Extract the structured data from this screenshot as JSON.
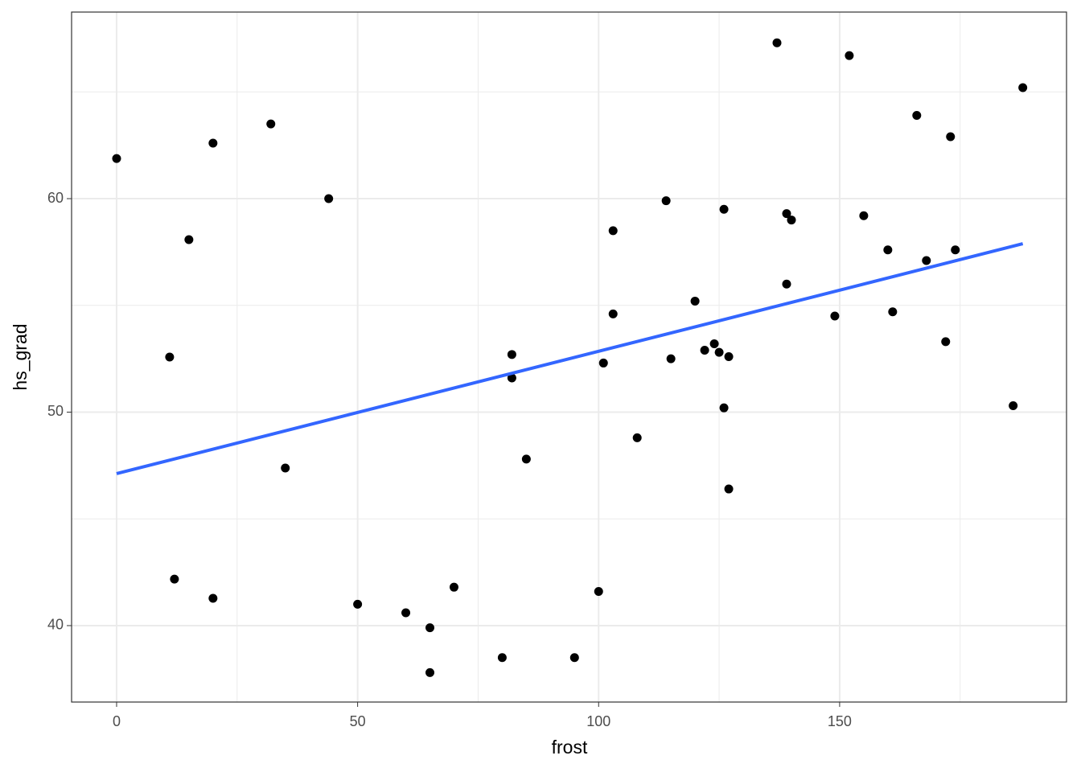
{
  "chart_data": {
    "type": "scatter",
    "x_label": "frost",
    "y_label": "hs_grad",
    "x": [
      0,
      20,
      32,
      44,
      15,
      11,
      35,
      12,
      20,
      50,
      60,
      65,
      65,
      70,
      80,
      95,
      100,
      82,
      82,
      85,
      101,
      103,
      103,
      108,
      114,
      115,
      120,
      122,
      124,
      125,
      127,
      126,
      127,
      126,
      137,
      139,
      140,
      139,
      149,
      152,
      155,
      160,
      161,
      166,
      168,
      172,
      173,
      174,
      186,
      188
    ],
    "series": [
      {
        "color": "#000000",
        "values": [
          61.88,
          62.6,
          63.5,
          60.0,
          58.08,
          52.58,
          47.38,
          42.18,
          41.28,
          41.0,
          40.6,
          39.9,
          37.8,
          41.8,
          38.5,
          38.5,
          41.6,
          52.7,
          51.6,
          47.8,
          52.3,
          58.5,
          54.6,
          48.8,
          59.9,
          52.5,
          55.2,
          52.9,
          53.2,
          52.8,
          52.6,
          50.2,
          46.4,
          59.5,
          67.3,
          59.3,
          59.0,
          56.0,
          54.5,
          66.7,
          59.2,
          57.6,
          54.7,
          63.9,
          57.1,
          53.3,
          62.9,
          57.6,
          50.3,
          65.2
        ]
      }
    ],
    "fit": {
      "x": [
        0,
        188
      ],
      "y": [
        47.12,
        57.89
      ],
      "color": "#3366FF"
    },
    "xlim": [
      -9.34,
      197.07
    ],
    "ylim": [
      36.42,
      68.74
    ],
    "xticks": [
      0,
      50,
      100,
      150
    ],
    "yticks": [
      40,
      50,
      60
    ],
    "xminor": [
      25,
      75,
      125,
      175
    ],
    "yminor": [
      45,
      55,
      65
    ],
    "grid": true
  }
}
